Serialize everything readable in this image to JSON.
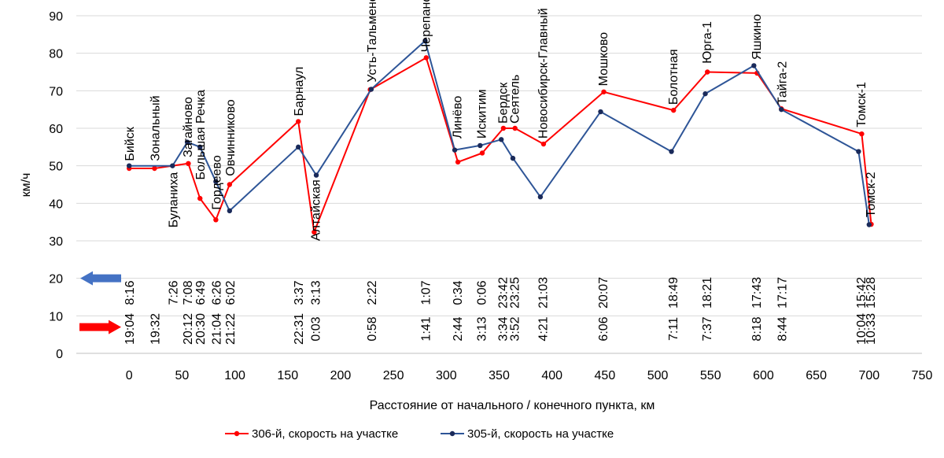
{
  "chart_data": {
    "type": "line",
    "xlabel": "Расстояние от начального / конечного пункта, км",
    "ylabel": "км/ч",
    "xlim": [
      -50,
      750
    ],
    "ylim": [
      0,
      90
    ],
    "x_ticks": [
      0,
      50,
      100,
      150,
      200,
      250,
      300,
      350,
      400,
      450,
      500,
      550,
      600,
      650,
      700,
      750
    ],
    "y_ticks": [
      0,
      10,
      20,
      30,
      40,
      50,
      60,
      70,
      80,
      90
    ],
    "grid": "horizontal",
    "legend_position": "bottom",
    "series": [
      {
        "name": "306-й, скорость на участке",
        "color": "#ff0000",
        "points": [
          {
            "x": 0,
            "y": 49.3
          },
          {
            "x": 24,
            "y": 49.3
          },
          {
            "x": 56,
            "y": 50.6
          },
          {
            "x": 67,
            "y": 41.3
          },
          {
            "x": 82,
            "y": 35.6
          },
          {
            "x": 95,
            "y": 45.0
          },
          {
            "x": 160,
            "y": 61.8
          },
          {
            "x": 175,
            "y": 32.3
          },
          {
            "x": 228,
            "y": 70.3
          },
          {
            "x": 281,
            "y": 78.8
          },
          {
            "x": 311,
            "y": 51.0
          },
          {
            "x": 334,
            "y": 53.4
          },
          {
            "x": 354,
            "y": 60.0
          },
          {
            "x": 365,
            "y": 60.0
          },
          {
            "x": 392,
            "y": 55.8
          },
          {
            "x": 449,
            "y": 69.7
          },
          {
            "x": 515,
            "y": 64.8
          },
          {
            "x": 547,
            "y": 75.0
          },
          {
            "x": 594,
            "y": 74.7
          },
          {
            "x": 617,
            "y": 65.2
          },
          {
            "x": 693,
            "y": 58.5
          },
          {
            "x": 702,
            "y": 34.4
          }
        ]
      },
      {
        "name": "305-й, скорость на участке",
        "color": "#2e5597",
        "points": [
          {
            "x": 0,
            "y": 50.0
          },
          {
            "x": 41,
            "y": 50.0
          },
          {
            "x": 55,
            "y": 56.3
          },
          {
            "x": 67,
            "y": 55.0
          },
          {
            "x": 82,
            "y": 45.8
          },
          {
            "x": 95,
            "y": 38.0
          },
          {
            "x": 160,
            "y": 55.0
          },
          {
            "x": 177,
            "y": 47.5
          },
          {
            "x": 229,
            "y": 70.4
          },
          {
            "x": 280,
            "y": 83.3
          },
          {
            "x": 308,
            "y": 54.2
          },
          {
            "x": 332,
            "y": 55.4
          },
          {
            "x": 352,
            "y": 57.0
          },
          {
            "x": 363,
            "y": 52.0
          },
          {
            "x": 389,
            "y": 41.7
          },
          {
            "x": 446,
            "y": 64.4
          },
          {
            "x": 513,
            "y": 53.8
          },
          {
            "x": 545,
            "y": 69.2
          },
          {
            "x": 591,
            "y": 76.7
          },
          {
            "x": 617,
            "y": 65.0
          },
          {
            "x": 690,
            "y": 53.8
          },
          {
            "x": 700,
            "y": 34.3
          }
        ]
      }
    ],
    "stations": [
      {
        "name": "Бийск",
        "x": 0,
        "y": 50,
        "pos": "above"
      },
      {
        "name": "Зональный",
        "x": 24,
        "y": 50,
        "pos": "above"
      },
      {
        "name": "Буланиха",
        "x": 41,
        "y": 50,
        "pos": "below"
      },
      {
        "name": "Загайново",
        "x": 55,
        "y": 51,
        "pos": "above"
      },
      {
        "name": "Большая Речка",
        "x": 67,
        "y": 45,
        "pos": "above"
      },
      {
        "name": "Гордеево",
        "x": 82,
        "y": 37,
        "pos": "above"
      },
      {
        "name": "Овчинниково",
        "x": 95,
        "y": 46,
        "pos": "above"
      },
      {
        "name": "Барнаул",
        "x": 160,
        "y": 62,
        "pos": "above"
      },
      {
        "name": "Алтайская",
        "x": 176,
        "y": 48,
        "pos": "below"
      },
      {
        "name": "Усть-Тальменская",
        "x": 229,
        "y": 71,
        "pos": "above"
      },
      {
        "name": "Черепаново",
        "x": 280,
        "y": 79,
        "pos": "above"
      },
      {
        "name": "Линёво",
        "x": 310,
        "y": 56,
        "pos": "above"
      },
      {
        "name": "Искитим",
        "x": 333,
        "y": 56,
        "pos": "above"
      },
      {
        "name": "Бердск",
        "x": 353,
        "y": 60,
        "pos": "above"
      },
      {
        "name": "Сеятель",
        "x": 364,
        "y": 60,
        "pos": "above"
      },
      {
        "name": "Новосибирск-Главный",
        "x": 391,
        "y": 56,
        "pos": "above"
      },
      {
        "name": "Мошково",
        "x": 448,
        "y": 70,
        "pos": "above"
      },
      {
        "name": "Болотная",
        "x": 514,
        "y": 65,
        "pos": "above"
      },
      {
        "name": "Юрга-1",
        "x": 546,
        "y": 76,
        "pos": "above"
      },
      {
        "name": "Яшкино",
        "x": 593,
        "y": 77,
        "pos": "above"
      },
      {
        "name": "Тайга-2",
        "x": 617,
        "y": 65,
        "pos": "above"
      },
      {
        "name": "Томск-1",
        "x": 692,
        "y": 59,
        "pos": "above"
      },
      {
        "name": "Томск-2",
        "x": 701,
        "y": 35,
        "pos": "above"
      }
    ],
    "times_305": [
      {
        "x": 0,
        "t": "8:16"
      },
      {
        "x": 41,
        "t": "7:26"
      },
      {
        "x": 55,
        "t": "7:08"
      },
      {
        "x": 67,
        "t": "6:49"
      },
      {
        "x": 82,
        "t": "6:26"
      },
      {
        "x": 95,
        "t": "6:02"
      },
      {
        "x": 160,
        "t": "3:37"
      },
      {
        "x": 176,
        "t": "3:13"
      },
      {
        "x": 229,
        "t": "2:22"
      },
      {
        "x": 280,
        "t": "1:07"
      },
      {
        "x": 310,
        "t": "0:34"
      },
      {
        "x": 333,
        "t": "0:06"
      },
      {
        "x": 353,
        "t": "23:42"
      },
      {
        "x": 364,
        "t": "23:25"
      },
      {
        "x": 391,
        "t": "21:03"
      },
      {
        "x": 448,
        "t": "20:07"
      },
      {
        "x": 514,
        "t": "18:49"
      },
      {
        "x": 546,
        "t": "18:21"
      },
      {
        "x": 593,
        "t": "17:43"
      },
      {
        "x": 617,
        "t": "17:17"
      },
      {
        "x": 692,
        "t": "15:42"
      },
      {
        "x": 701,
        "t": "15:28"
      }
    ],
    "times_306": [
      {
        "x": 0,
        "t": "19:04"
      },
      {
        "x": 24,
        "t": "19:32"
      },
      {
        "x": 55,
        "t": "20:12"
      },
      {
        "x": 67,
        "t": "20:30"
      },
      {
        "x": 82,
        "t": "21:04"
      },
      {
        "x": 95,
        "t": "21:22"
      },
      {
        "x": 160,
        "t": "22:31"
      },
      {
        "x": 176,
        "t": "0:03"
      },
      {
        "x": 229,
        "t": "0:58"
      },
      {
        "x": 280,
        "t": "1:41"
      },
      {
        "x": 310,
        "t": "2:44"
      },
      {
        "x": 333,
        "t": "3:13"
      },
      {
        "x": 353,
        "t": "3:34"
      },
      {
        "x": 364,
        "t": "3:52"
      },
      {
        "x": 391,
        "t": "4:21"
      },
      {
        "x": 448,
        "t": "6:06"
      },
      {
        "x": 514,
        "t": "7:11"
      },
      {
        "x": 546,
        "t": "7:37"
      },
      {
        "x": 593,
        "t": "8:18"
      },
      {
        "x": 617,
        "t": "8:44"
      },
      {
        "x": 692,
        "t": "10:04"
      },
      {
        "x": 701,
        "t": "10:33"
      }
    ],
    "arrows": [
      {
        "name": "305",
        "direction": "left",
        "color": "#4472c4",
        "y": 20
      },
      {
        "name": "306",
        "direction": "right",
        "color": "#ff0000",
        "y": 7
      }
    ]
  }
}
